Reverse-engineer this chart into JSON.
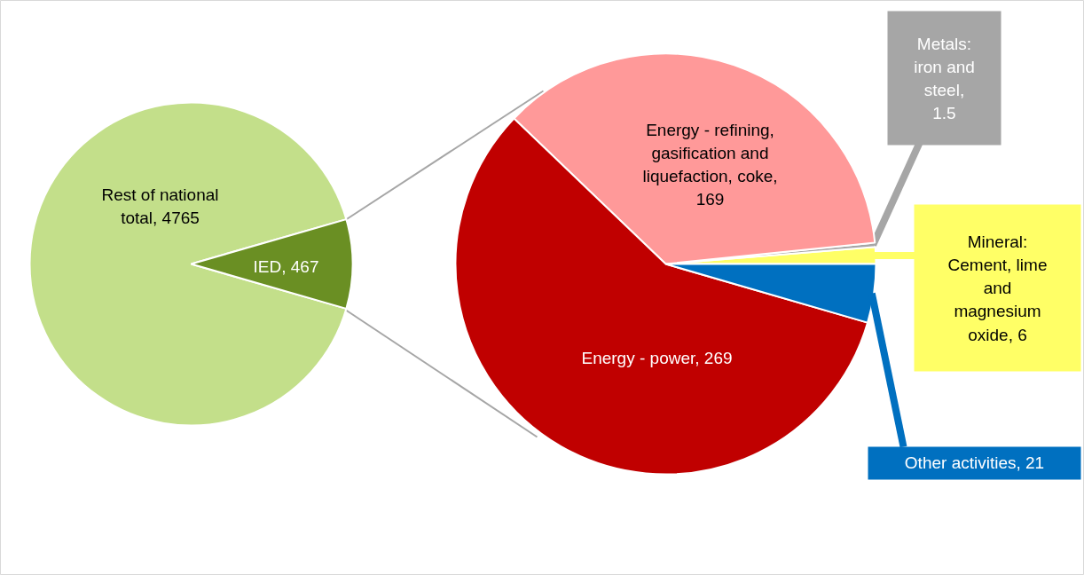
{
  "chart_data": [
    {
      "type": "pie",
      "categories": [
        "Rest of national total, 4765",
        "IED, 467"
      ],
      "values": [
        4765,
        467
      ],
      "colors": [
        "#c3df8a",
        "#6a8f23"
      ]
    },
    {
      "type": "pie",
      "categories": [
        "Mineral: Cement, lime and magnesium oxide, 6",
        "Metals: iron and steel, 1.5",
        "Energy - refining, gasification and liquefaction, coke, 169",
        "Energy - power, 269",
        "Other activities, 21"
      ],
      "values": [
        6,
        1.5,
        169,
        269,
        21
      ],
      "colors": [
        "#ffff66",
        "#a6a6a6",
        "#ff9999",
        "#c00000",
        "#0070c0"
      ]
    }
  ]
}
